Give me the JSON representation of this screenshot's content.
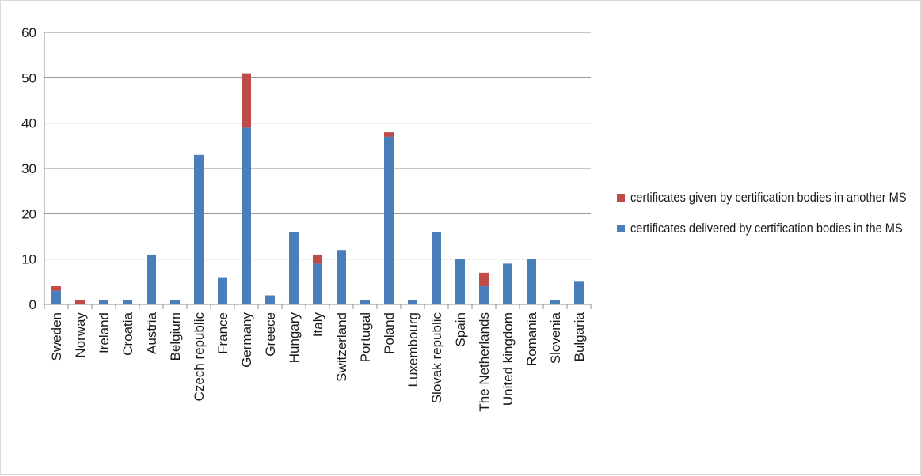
{
  "chart_data": {
    "type": "bar",
    "stacked": true,
    "categories": [
      "Sweden",
      "Norway",
      "Ireland",
      "Croatia",
      "Austria",
      "Belgium",
      "Czech republic",
      "France",
      "Germany",
      "Greece",
      "Hungary",
      "Italy",
      "Switzerland",
      "Portugal",
      "Poland",
      "Luxembourg",
      "Slovak republic",
      "Spain",
      "The Netherlands",
      "United kingdom",
      "Romania",
      "Slovenia",
      "Bulgaria"
    ],
    "series": [
      {
        "name": "certificates delivered by certification bodies in the MS",
        "color": "#4a7ebb",
        "values": [
          3,
          0,
          1,
          1,
          11,
          1,
          33,
          6,
          39,
          2,
          16,
          9,
          12,
          1,
          37,
          1,
          16,
          10,
          4,
          9,
          10,
          1,
          5
        ]
      },
      {
        "name": "certificates given by certification bodies in another MS",
        "color": "#be4b48",
        "values": [
          1,
          1,
          0,
          0,
          0,
          0,
          0,
          0,
          12,
          0,
          0,
          2,
          0,
          0,
          1,
          0,
          0,
          0,
          3,
          0,
          0,
          0,
          0
        ]
      }
    ],
    "ylim": [
      0,
      60
    ],
    "yticks": [
      "0",
      "10",
      "20",
      "30",
      "40",
      "50",
      "60"
    ],
    "grid": true,
    "legend_position": "right",
    "legend_entries": [
      {
        "label": "certificates given by certification bodies in another MS",
        "color": "#be4b48"
      },
      {
        "label": "certificates delivered by certification bodies in the MS",
        "color": "#4a7ebb"
      }
    ]
  }
}
